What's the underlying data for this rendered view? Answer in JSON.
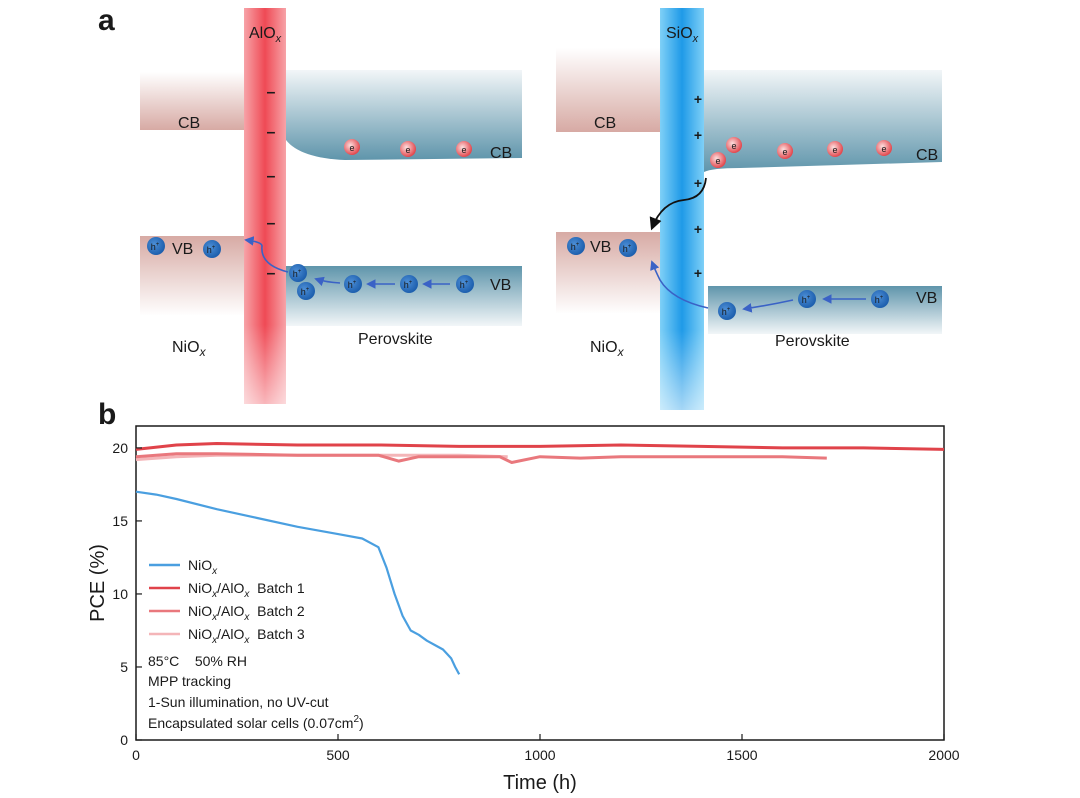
{
  "panel_a": {
    "label": "a",
    "left": {
      "barrier": "AlO",
      "barrier_sub": "x",
      "cb": "CB",
      "vb": "VB",
      "pcb": "CB",
      "pvb": "VB",
      "material_left": "NiO",
      "material_left_sub": "x",
      "material_right": "Perovskite",
      "charge_sign": "–",
      "electron": "e",
      "hole": "h",
      "hole_sup": "+"
    },
    "right": {
      "barrier": "SiO",
      "barrier_sub": "x",
      "cb": "CB",
      "vb": "VB",
      "pcb": "CB",
      "pvb": "VB",
      "material_left": "NiO",
      "material_left_sub": "x",
      "material_right": "Perovskite",
      "charge_sign": "+",
      "electron": "e",
      "hole": "h",
      "hole_sup": "+"
    }
  },
  "panel_b": {
    "label": "b",
    "conditions": [
      "85°C    50% RH",
      "MPP tracking",
      "1-Sun illumination, no UV-cut"
    ],
    "condition_last": "Encapsulated solar cells (0.07cm",
    "condition_last_sup": "2",
    "condition_last_end": ")",
    "legend": [
      {
        "a": "NiO",
        "sub1": "x",
        "b": "",
        "sub2": "",
        "c": ""
      },
      {
        "a": "NiO",
        "sub1": "x",
        "b": "/AlO",
        "sub2": "x",
        "c": "  Batch 1"
      },
      {
        "a": "NiO",
        "sub1": "x",
        "b": "/AlO",
        "sub2": "x",
        "c": "  Batch 2"
      },
      {
        "a": "NiO",
        "sub1": "x",
        "b": "/AlO",
        "sub2": "x",
        "c": "  Batch 3"
      }
    ]
  },
  "chart_data": {
    "type": "line",
    "xlabel": "Time (h)",
    "ylabel": "PCE (%)",
    "xlim": [
      0,
      2000
    ],
    "ylim": [
      0,
      21.5
    ],
    "xticks": [
      0,
      500,
      1000,
      1500,
      2000
    ],
    "yticks": [
      0,
      5,
      10,
      15,
      20
    ],
    "grid": false,
    "legend_position": "lower-left",
    "series": [
      {
        "name": "NiOx",
        "color": "#4a9fe0",
        "x": [
          0,
          50,
          100,
          200,
          300,
          400,
          500,
          560,
          600,
          620,
          640,
          660,
          680,
          700,
          720,
          740,
          760,
          780,
          790,
          800
        ],
        "y": [
          17.0,
          16.8,
          16.5,
          15.8,
          15.2,
          14.6,
          14.1,
          13.8,
          13.2,
          11.8,
          10.0,
          8.5,
          7.5,
          7.2,
          6.8,
          6.5,
          6.2,
          5.6,
          5.0,
          4.5
        ]
      },
      {
        "name": "NiOx/AlOx Batch 1",
        "color": "#e0434a",
        "x": [
          0,
          100,
          200,
          400,
          600,
          800,
          1000,
          1200,
          1400,
          1600,
          1800,
          2000
        ],
        "y": [
          19.9,
          20.2,
          20.3,
          20.2,
          20.2,
          20.1,
          20.1,
          20.2,
          20.1,
          20.0,
          20.0,
          19.9
        ]
      },
      {
        "name": "NiOx/AlOx Batch 2",
        "color": "#e9787d",
        "x": [
          0,
          100,
          200,
          400,
          600,
          650,
          700,
          900,
          930,
          1000,
          1100,
          1200,
          1400,
          1600,
          1710
        ],
        "y": [
          19.4,
          19.6,
          19.6,
          19.5,
          19.5,
          19.1,
          19.4,
          19.4,
          19.0,
          19.4,
          19.3,
          19.4,
          19.4,
          19.4,
          19.3
        ]
      },
      {
        "name": "NiOx/AlOx Batch 3",
        "color": "#f4b5b8",
        "x": [
          0,
          100,
          200,
          400,
          600,
          800,
          920
        ],
        "y": [
          19.2,
          19.4,
          19.5,
          19.5,
          19.5,
          19.5,
          19.4
        ]
      }
    ]
  }
}
